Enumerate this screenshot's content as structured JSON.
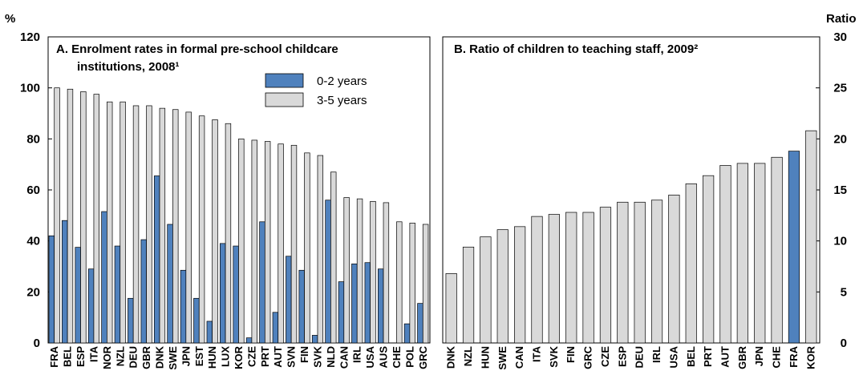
{
  "units": {
    "left": "%",
    "right": "Ratio"
  },
  "colors": {
    "blue": "#4f81bd",
    "grey": "#d9d9d9",
    "stroke": "#000000"
  },
  "chart_data": [
    {
      "type": "bar",
      "title": "A. Enrolment rates in formal pre-school childcare institutions, 2008¹",
      "title_lines": [
        "A. Enrolment rates in formal pre-school childcare",
        "institutions, 2008¹"
      ],
      "ylabel": "%",
      "ylim": [
        0,
        120
      ],
      "yticks": [
        0,
        20,
        40,
        60,
        80,
        100,
        120
      ],
      "categories": [
        "FRA",
        "BEL",
        "ESP",
        "ITA",
        "NOR",
        "NZL",
        "DEU",
        "GBR",
        "DNK",
        "SWE",
        "JPN",
        "EST",
        "HUN",
        "LUX",
        "KOR",
        "CZE",
        "PRT",
        "AUT",
        "SVN",
        "FIN",
        "SVK",
        "NLD",
        "CAN",
        "IRL",
        "USA",
        "AUS",
        "CHE",
        "POL",
        "GRC"
      ],
      "series": [
        {
          "name": "0-2 years",
          "color": "#4f81bd",
          "values": [
            42,
            48,
            37.5,
            29,
            51.5,
            38,
            17.5,
            40.5,
            65.5,
            46.5,
            28.5,
            17.5,
            8.5,
            39,
            38,
            2,
            47.5,
            12,
            34,
            28.5,
            3,
            56,
            24,
            31,
            31.5,
            29,
            0,
            7.5,
            15.5
          ]
        },
        {
          "name": "3-5 years",
          "color": "#d9d9d9",
          "values": [
            100,
            99.5,
            98.5,
            97.5,
            94.5,
            94.5,
            93,
            93,
            92,
            91.5,
            90.5,
            89,
            87.5,
            86,
            80,
            79.5,
            79,
            78,
            77.5,
            74.5,
            73.5,
            67,
            57,
            56.5,
            55.5,
            55,
            47.5,
            47,
            46.5
          ]
        }
      ],
      "legend": "top-right",
      "grid": false
    },
    {
      "type": "bar",
      "title": "B. Ratio of children to teaching staff, 2009²",
      "ylabel": "Ratio",
      "ylim": [
        0,
        30
      ],
      "yticks": [
        0,
        5,
        10,
        15,
        20,
        25,
        30
      ],
      "categories": [
        "DNK",
        "NZL",
        "HUN",
        "SWE",
        "CAN",
        "ITA",
        "SVK",
        "FIN",
        "GRC",
        "CZE",
        "ESP",
        "DEU",
        "IRL",
        "USA",
        "BEL",
        "PRT",
        "AUT",
        "GBR",
        "JPN",
        "CHE",
        "FRA",
        "KOR"
      ],
      "values": [
        6.8,
        9.4,
        10.4,
        11.1,
        11.4,
        12.4,
        12.6,
        12.8,
        12.8,
        13.3,
        13.8,
        13.8,
        14.0,
        14.5,
        15.6,
        16.4,
        17.4,
        17.6,
        17.6,
        18.2,
        18.8,
        20.8
      ],
      "highlight": "FRA",
      "grid": false
    }
  ]
}
